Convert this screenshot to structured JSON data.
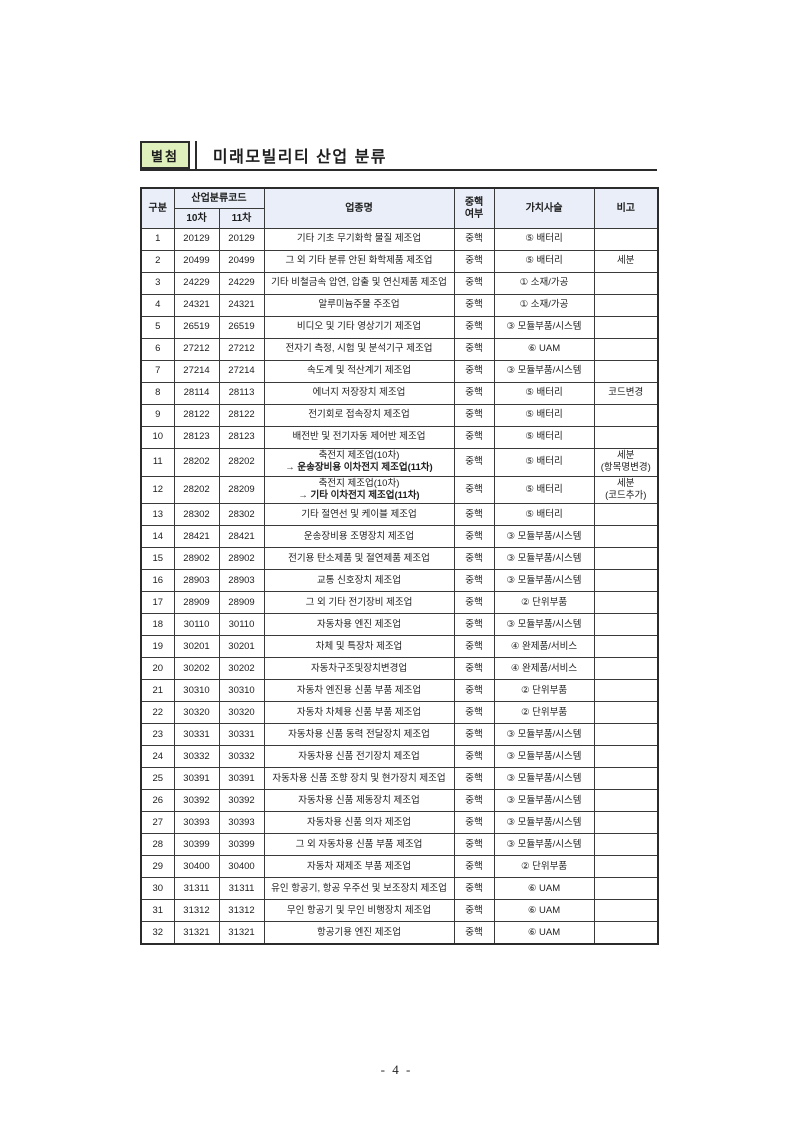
{
  "page": {
    "badge": "별첨",
    "title": "미래모빌리티 산업 분류",
    "page_number": "- 4 -"
  },
  "colors": {
    "badge_bg": "#dff0bc",
    "header_bg": "#e9eef8",
    "border": "#3a3a3a"
  },
  "table": {
    "header": {
      "category": "구분",
      "code_group": "산업분류코드",
      "code10": "10차",
      "code11": "11차",
      "industry": "업종명",
      "core_line1": "중핵",
      "core_line2": "여부",
      "value_chain": "가치사슬",
      "remark": "비고"
    },
    "rows": [
      {
        "no": "1",
        "code10": "20129",
        "code11": "20129",
        "name": "기타 기초 무기화학 물질 제조업",
        "name2": "",
        "core": "중핵",
        "chain": "⑤ 배터리",
        "note": "",
        "note2": ""
      },
      {
        "no": "2",
        "code10": "20499",
        "code11": "20499",
        "name": "그 외 기타 분류 안된 화학제품 제조업",
        "name2": "",
        "core": "중핵",
        "chain": "⑤ 배터리",
        "note": "세분",
        "note2": ""
      },
      {
        "no": "3",
        "code10": "24229",
        "code11": "24229",
        "name": "기타 비철금속 압연, 압출 및 연신제품 제조업",
        "name2": "",
        "core": "중핵",
        "chain": "① 소재/가공",
        "note": "",
        "note2": ""
      },
      {
        "no": "4",
        "code10": "24321",
        "code11": "24321",
        "name": "알루미늄주물 주조업",
        "name2": "",
        "core": "중핵",
        "chain": "① 소재/가공",
        "note": "",
        "note2": ""
      },
      {
        "no": "5",
        "code10": "26519",
        "code11": "26519",
        "name": "비디오 및 기타 영상기기 제조업",
        "name2": "",
        "core": "중핵",
        "chain": "③ 모듈부품/시스템",
        "note": "",
        "note2": ""
      },
      {
        "no": "6",
        "code10": "27212",
        "code11": "27212",
        "name": "전자기 측정, 시험 및 분석기구 제조업",
        "name2": "",
        "core": "중핵",
        "chain": "⑥ UAM",
        "note": "",
        "note2": ""
      },
      {
        "no": "7",
        "code10": "27214",
        "code11": "27214",
        "name": "속도계 및 적산계기 제조업",
        "name2": "",
        "core": "중핵",
        "chain": "③ 모듈부품/시스템",
        "note": "",
        "note2": ""
      },
      {
        "no": "8",
        "code10": "28114",
        "code11": "28113",
        "name": "에너지 저장장치 제조업",
        "name2": "",
        "core": "중핵",
        "chain": "⑤ 배터리",
        "note": "코드변경",
        "note2": ""
      },
      {
        "no": "9",
        "code10": "28122",
        "code11": "28122",
        "name": "전기회로 접속장치 제조업",
        "name2": "",
        "core": "중핵",
        "chain": "⑤ 배터리",
        "note": "",
        "note2": ""
      },
      {
        "no": "10",
        "code10": "28123",
        "code11": "28123",
        "name": "배전반 및 전기자동 제어반 제조업",
        "name2": "",
        "core": "중핵",
        "chain": "⑤ 배터리",
        "note": "",
        "note2": ""
      },
      {
        "no": "11",
        "code10": "28202",
        "code11": "28202",
        "name": "축전지 제조업(10차)",
        "name2": "→ 운송장비용 이차전지 제조업(11차)",
        "core": "중핵",
        "chain": "⑤ 배터리",
        "note": "세분",
        "note2": "(항목명변경)"
      },
      {
        "no": "12",
        "code10": "28202",
        "code11": "28209",
        "name": "축전지 제조업(10차)",
        "name2": "→ 기타 이차전지 제조업(11차)",
        "core": "중핵",
        "chain": "⑤ 배터리",
        "note": "세분",
        "note2": "(코드추가)"
      },
      {
        "no": "13",
        "code10": "28302",
        "code11": "28302",
        "name": "기타 절연선 및 케이블 제조업",
        "name2": "",
        "core": "중핵",
        "chain": "⑤ 배터리",
        "note": "",
        "note2": ""
      },
      {
        "no": "14",
        "code10": "28421",
        "code11": "28421",
        "name": "운송장비용 조명장치 제조업",
        "name2": "",
        "core": "중핵",
        "chain": "③ 모듈부품/시스템",
        "note": "",
        "note2": ""
      },
      {
        "no": "15",
        "code10": "28902",
        "code11": "28902",
        "name": "전기용 탄소제품 및 절연제품 제조업",
        "name2": "",
        "core": "중핵",
        "chain": "③ 모듈부품/시스템",
        "note": "",
        "note2": ""
      },
      {
        "no": "16",
        "code10": "28903",
        "code11": "28903",
        "name": "교통 신호장치 제조업",
        "name2": "",
        "core": "중핵",
        "chain": "③ 모듈부품/시스템",
        "note": "",
        "note2": ""
      },
      {
        "no": "17",
        "code10": "28909",
        "code11": "28909",
        "name": "그 외 기타 전기장비 제조업",
        "name2": "",
        "core": "중핵",
        "chain": "② 단위부품",
        "note": "",
        "note2": ""
      },
      {
        "no": "18",
        "code10": "30110",
        "code11": "30110",
        "name": "자동차용 엔진 제조업",
        "name2": "",
        "core": "중핵",
        "chain": "③ 모듈부품/시스템",
        "note": "",
        "note2": ""
      },
      {
        "no": "19",
        "code10": "30201",
        "code11": "30201",
        "name": "차체 및 특장차 제조업",
        "name2": "",
        "core": "중핵",
        "chain": "④ 완제품/서비스",
        "note": "",
        "note2": ""
      },
      {
        "no": "20",
        "code10": "30202",
        "code11": "30202",
        "name": "자동차구조및장치변경업",
        "name2": "",
        "core": "중핵",
        "chain": "④ 완제품/서비스",
        "note": "",
        "note2": ""
      },
      {
        "no": "21",
        "code10": "30310",
        "code11": "30310",
        "name": "자동차 엔진용 신품 부품 제조업",
        "name2": "",
        "core": "중핵",
        "chain": "② 단위부품",
        "note": "",
        "note2": ""
      },
      {
        "no": "22",
        "code10": "30320",
        "code11": "30320",
        "name": "자동차 차체용 신품 부품 제조업",
        "name2": "",
        "core": "중핵",
        "chain": "② 단위부품",
        "note": "",
        "note2": ""
      },
      {
        "no": "23",
        "code10": "30331",
        "code11": "30331",
        "name": "자동차용 신품 동력 전달장치 제조업",
        "name2": "",
        "core": "중핵",
        "chain": "③ 모듈부품/시스템",
        "note": "",
        "note2": ""
      },
      {
        "no": "24",
        "code10": "30332",
        "code11": "30332",
        "name": "자동차용 신품 전기장치 제조업",
        "name2": "",
        "core": "중핵",
        "chain": "③ 모듈부품/시스템",
        "note": "",
        "note2": ""
      },
      {
        "no": "25",
        "code10": "30391",
        "code11": "30391",
        "name": "자동차용 신품 조향 장치 및 현가장치 제조업",
        "name2": "",
        "core": "중핵",
        "chain": "③ 모듈부품/시스템",
        "note": "",
        "note2": ""
      },
      {
        "no": "26",
        "code10": "30392",
        "code11": "30392",
        "name": "자동차용 신품 제동장치 제조업",
        "name2": "",
        "core": "중핵",
        "chain": "③ 모듈부품/시스템",
        "note": "",
        "note2": ""
      },
      {
        "no": "27",
        "code10": "30393",
        "code11": "30393",
        "name": "자동차용 신품 의자 제조업",
        "name2": "",
        "core": "중핵",
        "chain": "③ 모듈부품/시스템",
        "note": "",
        "note2": ""
      },
      {
        "no": "28",
        "code10": "30399",
        "code11": "30399",
        "name": "그 외 자동차용 신품 부품 제조업",
        "name2": "",
        "core": "중핵",
        "chain": "③ 모듈부품/시스템",
        "note": "",
        "note2": ""
      },
      {
        "no": "29",
        "code10": "30400",
        "code11": "30400",
        "name": "자동차 재제조 부품 제조업",
        "name2": "",
        "core": "중핵",
        "chain": "② 단위부품",
        "note": "",
        "note2": ""
      },
      {
        "no": "30",
        "code10": "31311",
        "code11": "31311",
        "name": "유인 항공기, 항공 우주선 및 보조장치 제조업",
        "name2": "",
        "core": "중핵",
        "chain": "⑥ UAM",
        "note": "",
        "note2": ""
      },
      {
        "no": "31",
        "code10": "31312",
        "code11": "31312",
        "name": "무인 항공기 및 무인 비행장치 제조업",
        "name2": "",
        "core": "중핵",
        "chain": "⑥ UAM",
        "note": "",
        "note2": ""
      },
      {
        "no": "32",
        "code10": "31321",
        "code11": "31321",
        "name": "항공기용 엔진 제조업",
        "name2": "",
        "core": "중핵",
        "chain": "⑥ UAM",
        "note": "",
        "note2": ""
      }
    ]
  }
}
